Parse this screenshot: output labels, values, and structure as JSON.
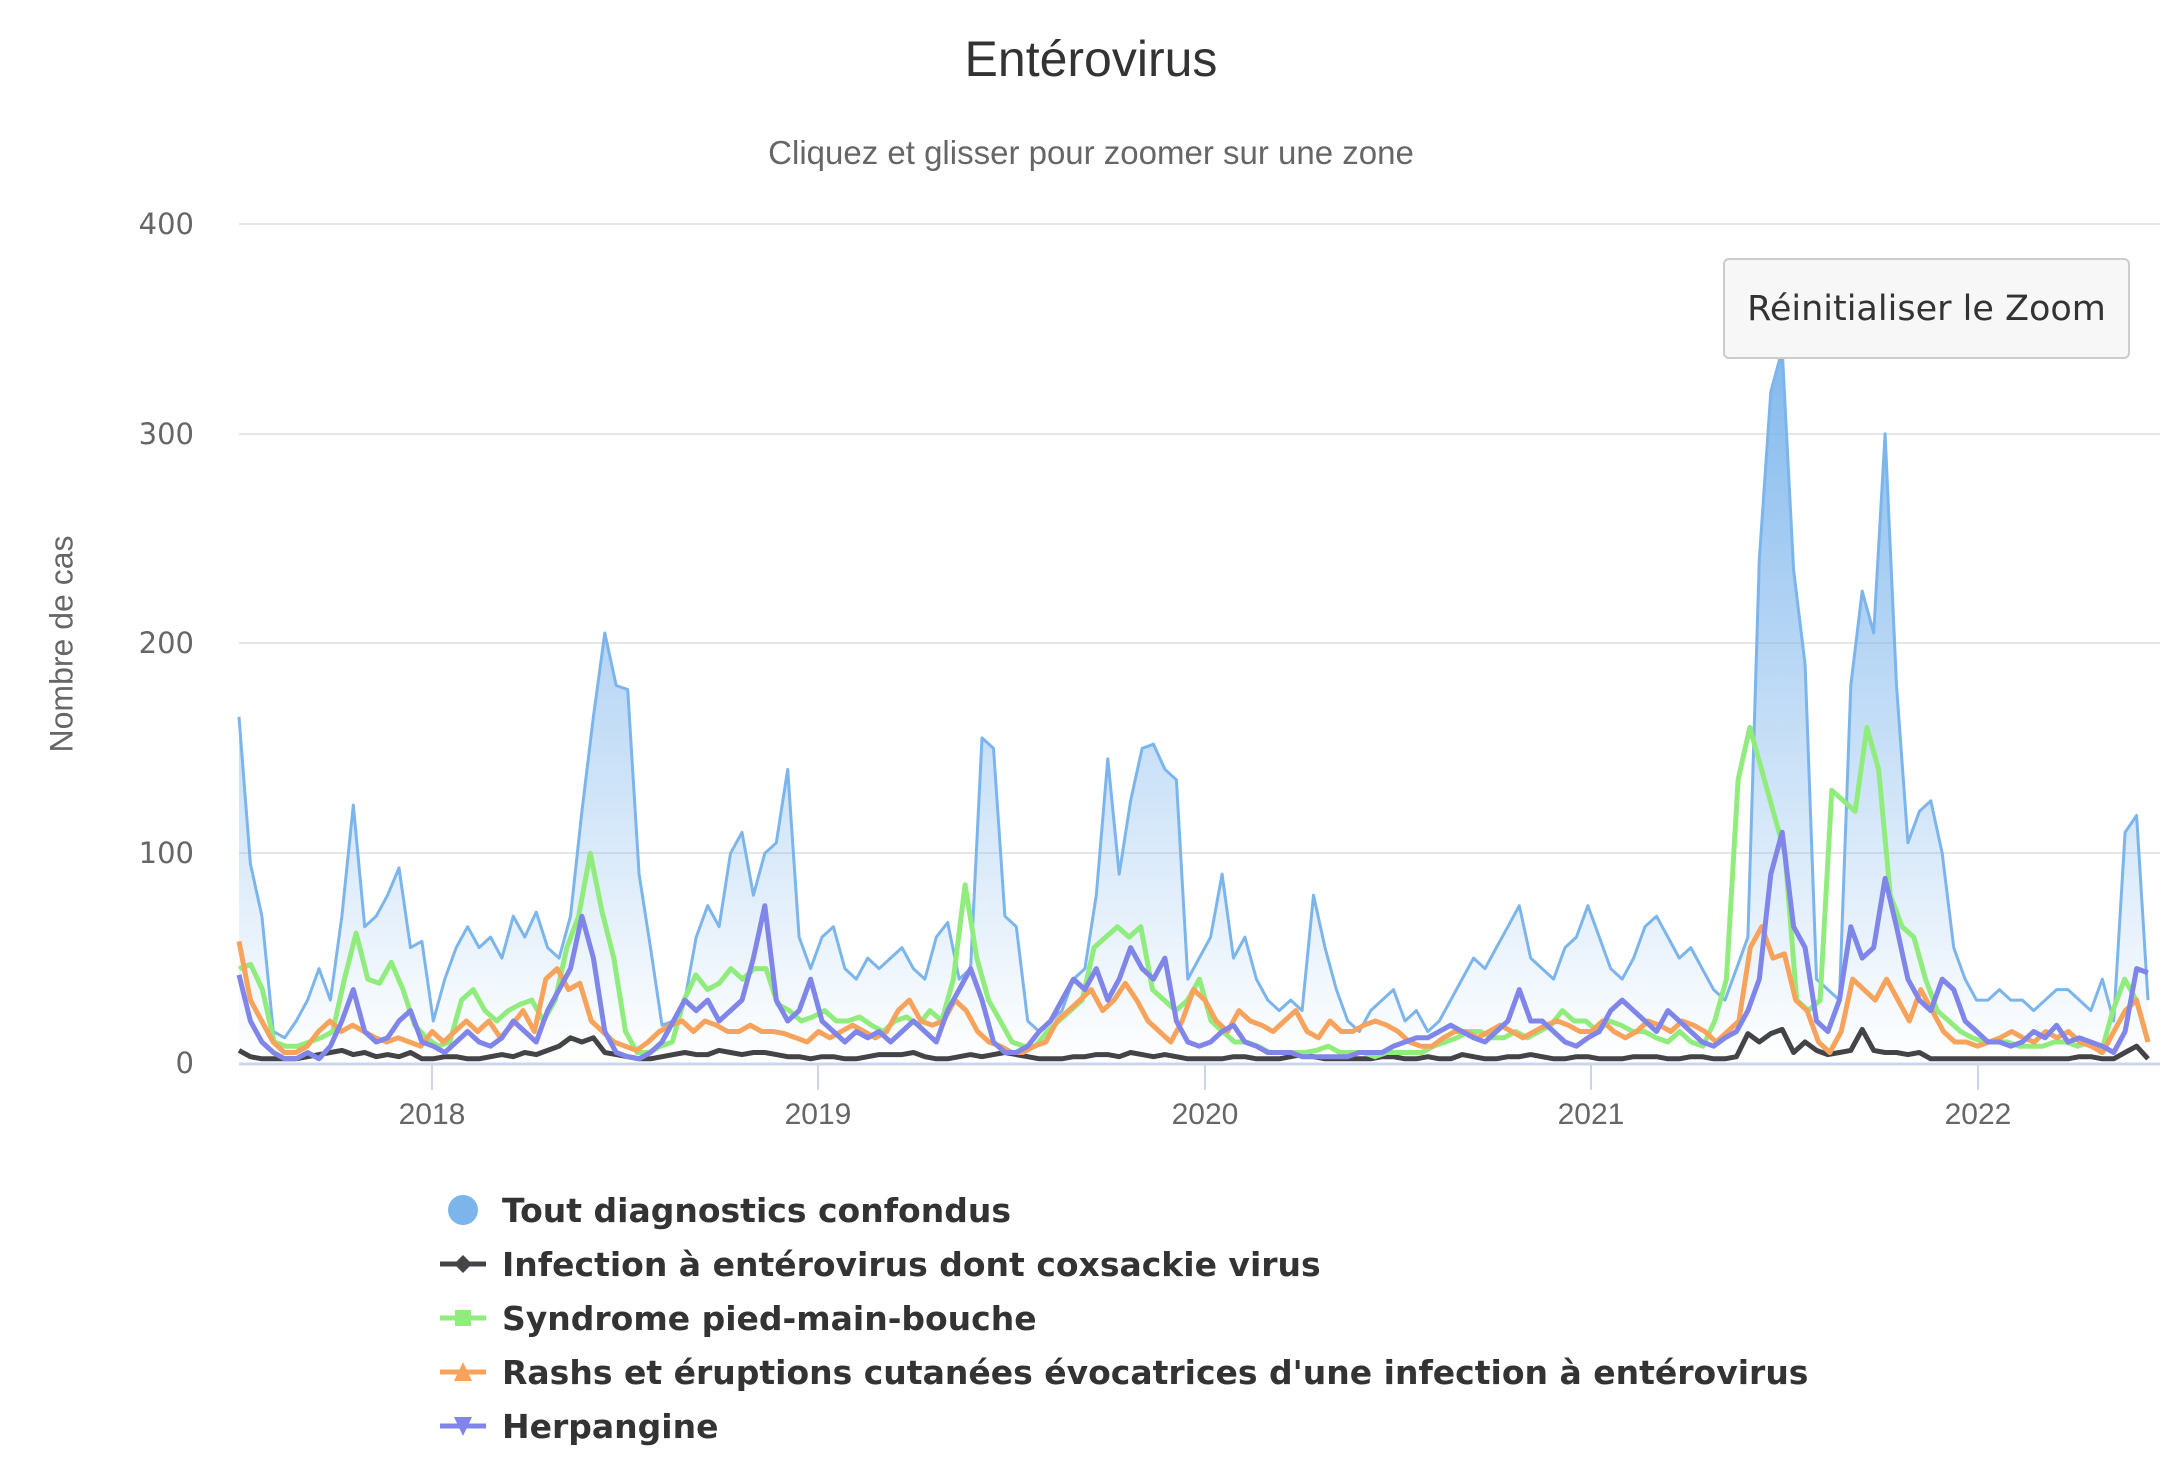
{
  "title": "Entérovirus",
  "subtitle": "Cliquez et glisser pour zoomer sur une zone",
  "reset_zoom_label": "Réinitialiser le Zoom",
  "y_axis": {
    "label": "Nombre de cas",
    "ticks": [
      "0",
      "100",
      "200",
      "300",
      "400"
    ]
  },
  "x_axis": {
    "ticks": [
      "2018",
      "2019",
      "2020",
      "2021",
      "2022"
    ]
  },
  "legend": [
    {
      "label": "Tout diagnostics confondus",
      "color": "#7cb5ec",
      "symbol": "circle"
    },
    {
      "label": "Infection à entérovirus dont coxsackie virus",
      "color": "#434348",
      "symbol": "diamond"
    },
    {
      "label": "Syndrome pied-main-bouche",
      "color": "#90ed7d",
      "symbol": "square"
    },
    {
      "label": "Rashs et éruptions cutanées évocatrices d'une infection à entérovirus",
      "color": "#f7a35c",
      "symbol": "triangle"
    },
    {
      "label": "Herpangine",
      "color": "#8085e9",
      "symbol": "triangle-down"
    }
  ],
  "chart_data": {
    "type": "line",
    "title": "Entérovirus",
    "subtitle": "Cliquez et glisser pour zoomer sur une zone",
    "xlabel": "",
    "ylabel": "Nombre de cas",
    "ylim": [
      0,
      400
    ],
    "xlim": [
      2017.5,
      2022.44
    ],
    "x_tick_labels": [
      "2018",
      "2019",
      "2020",
      "2021",
      "2022"
    ],
    "grid": true,
    "legend_position": "bottom",
    "x_start": 2017.5,
    "x_step_years": 0.0385,
    "series": [
      {
        "name": "Tout diagnostics confondus",
        "type": "area",
        "color": "#7cb5ec",
        "values": [
          165,
          95,
          70,
          15,
          12,
          20,
          30,
          45,
          30,
          70,
          123,
          65,
          70,
          80,
          93,
          55,
          58,
          20,
          40,
          55,
          65,
          55,
          60,
          50,
          70,
          60,
          72,
          55,
          50,
          70,
          120,
          165,
          205,
          180,
          178,
          90,
          55,
          18,
          20,
          30,
          60,
          75,
          65,
          100,
          110,
          80,
          100,
          105,
          140,
          60,
          45,
          60,
          65,
          45,
          40,
          50,
          45,
          50,
          55,
          45,
          40,
          60,
          67,
          40,
          45,
          155,
          150,
          70,
          65,
          20,
          15,
          20,
          25,
          40,
          45,
          80,
          145,
          90,
          125,
          150,
          152,
          140,
          135,
          40,
          50,
          60,
          90,
          50,
          60,
          40,
          30,
          25,
          30,
          25,
          80,
          55,
          35,
          20,
          15,
          25,
          30,
          35,
          20,
          25,
          15,
          20,
          30,
          40,
          50,
          45,
          55,
          65,
          75,
          50,
          45,
          40,
          55,
          60,
          75,
          60,
          45,
          40,
          50,
          65,
          70,
          60,
          50,
          55,
          45,
          35,
          30,
          45,
          60,
          240,
          320,
          340,
          235,
          190,
          40,
          35,
          30,
          180,
          225,
          205,
          300,
          180,
          105,
          120,
          125,
          100,
          55,
          40,
          30,
          30,
          35,
          30,
          30,
          25,
          30,
          35,
          35,
          30,
          25,
          40,
          20,
          110,
          118,
          30
        ]
      },
      {
        "name": "Infection à entérovirus dont coxsackie virus",
        "type": "line",
        "color": "#434348",
        "values": [
          6,
          3,
          2,
          2,
          2,
          2,
          3,
          4,
          5,
          6,
          4,
          5,
          3,
          4,
          3,
          5,
          2,
          2,
          3,
          3,
          2,
          2,
          3,
          4,
          3,
          5,
          4,
          6,
          8,
          12,
          10,
          12,
          5,
          4,
          3,
          2,
          2,
          3,
          4,
          5,
          4,
          4,
          6,
          5,
          4,
          5,
          5,
          4,
          3,
          3,
          2,
          3,
          3,
          2,
          2,
          3,
          4,
          4,
          4,
          5,
          3,
          2,
          2,
          3,
          4,
          3,
          4,
          5,
          4,
          3,
          2,
          2,
          2,
          3,
          3,
          4,
          4,
          3,
          5,
          4,
          3,
          4,
          3,
          2,
          2,
          2,
          2,
          3,
          3,
          2,
          2,
          2,
          3,
          4,
          3,
          2,
          2,
          2,
          2,
          2,
          3,
          3,
          2,
          2,
          3,
          2,
          2,
          4,
          3,
          2,
          2,
          3,
          3,
          4,
          3,
          2,
          2,
          3,
          3,
          2,
          2,
          2,
          3,
          3,
          3,
          2,
          2,
          3,
          3,
          2,
          2,
          3,
          14,
          10,
          14,
          16,
          5,
          10,
          6,
          4,
          5,
          6,
          16,
          6,
          5,
          5,
          4,
          5,
          2,
          2,
          2,
          2,
          2,
          2,
          2,
          2,
          2,
          2,
          2,
          2,
          2,
          3,
          3,
          2,
          2,
          5,
          8,
          2
        ]
      },
      {
        "name": "Syndrome pied-main-bouche",
        "type": "line",
        "color": "#90ed7d",
        "values": [
          45,
          47,
          35,
          10,
          8,
          8,
          10,
          12,
          15,
          40,
          62,
          40,
          38,
          48,
          35,
          18,
          12,
          8,
          10,
          30,
          35,
          25,
          20,
          25,
          28,
          30,
          20,
          30,
          55,
          70,
          100,
          72,
          50,
          15,
          5,
          5,
          8,
          10,
          30,
          42,
          35,
          38,
          45,
          40,
          45,
          45,
          28,
          25,
          20,
          22,
          25,
          20,
          20,
          22,
          18,
          15,
          20,
          22,
          18,
          25,
          20,
          40,
          85,
          50,
          30,
          20,
          10,
          8,
          8,
          15,
          20,
          25,
          30,
          55,
          60,
          65,
          60,
          65,
          35,
          30,
          25,
          30,
          40,
          20,
          15,
          10,
          10,
          8,
          5,
          5,
          5,
          5,
          6,
          8,
          5,
          5,
          5,
          3,
          5,
          5,
          5,
          5,
          8,
          10,
          12,
          15,
          15,
          12,
          12,
          15,
          12,
          15,
          18,
          25,
          20,
          20,
          15,
          20,
          18,
          15,
          15,
          12,
          10,
          15,
          10,
          8,
          20,
          40,
          135,
          160,
          140,
          120,
          100,
          30,
          25,
          30,
          130,
          125,
          120,
          160,
          140,
          80,
          65,
          60,
          40,
          25,
          20,
          15,
          12,
          10,
          10,
          10,
          8,
          8,
          8,
          10,
          10,
          8,
          10,
          5,
          25,
          40,
          30,
          10
        ]
      },
      {
        "name": "Rashs et éruptions cutanées évocatrices d'une infection à entérovirus",
        "type": "line",
        "color": "#f7a35c",
        "values": [
          58,
          30,
          20,
          10,
          5,
          5,
          8,
          15,
          20,
          15,
          18,
          15,
          12,
          10,
          12,
          10,
          8,
          15,
          10,
          15,
          20,
          15,
          20,
          12,
          18,
          25,
          15,
          40,
          45,
          35,
          38,
          20,
          15,
          10,
          8,
          6,
          10,
          15,
          18,
          20,
          15,
          20,
          18,
          15,
          15,
          18,
          15,
          15,
          14,
          12,
          10,
          15,
          12,
          15,
          18,
          15,
          12,
          15,
          25,
          30,
          20,
          18,
          20,
          30,
          25,
          15,
          10,
          8,
          5,
          5,
          8,
          10,
          20,
          25,
          30,
          35,
          25,
          30,
          38,
          30,
          20,
          15,
          10,
          20,
          35,
          30,
          20,
          15,
          25,
          20,
          18,
          15,
          20,
          25,
          15,
          12,
          20,
          15,
          15,
          18,
          20,
          18,
          15,
          10,
          8,
          8,
          12,
          15,
          15,
          12,
          15,
          18,
          15,
          12,
          15,
          18,
          20,
          18,
          15,
          15,
          20,
          15,
          12,
          15,
          20,
          18,
          15,
          20,
          18,
          15,
          10,
          15,
          20,
          55,
          65,
          50,
          52,
          30,
          25,
          10,
          5,
          15,
          40,
          35,
          30,
          40,
          30,
          20,
          35,
          25,
          15,
          10,
          10,
          8,
          10,
          12,
          15,
          12,
          10,
          15,
          12,
          15,
          10,
          8,
          5,
          15,
          25,
          30,
          10
        ]
      },
      {
        "name": "Herpangine",
        "type": "line",
        "color": "#8085e9",
        "values": [
          42,
          20,
          10,
          5,
          2,
          2,
          5,
          2,
          8,
          20,
          35,
          15,
          10,
          12,
          20,
          25,
          10,
          8,
          5,
          10,
          15,
          10,
          8,
          12,
          20,
          15,
          10,
          25,
          35,
          45,
          70,
          50,
          15,
          5,
          3,
          2,
          5,
          10,
          20,
          30,
          25,
          30,
          20,
          25,
          30,
          50,
          75,
          30,
          20,
          25,
          40,
          20,
          15,
          10,
          15,
          12,
          15,
          10,
          15,
          20,
          15,
          10,
          25,
          35,
          45,
          30,
          10,
          5,
          5,
          8,
          15,
          20,
          30,
          40,
          35,
          45,
          30,
          40,
          55,
          45,
          40,
          50,
          20,
          10,
          8,
          10,
          15,
          18,
          10,
          8,
          5,
          5,
          5,
          3,
          3,
          3,
          3,
          3,
          5,
          5,
          5,
          8,
          10,
          12,
          12,
          15,
          18,
          15,
          12,
          10,
          15,
          20,
          35,
          20,
          20,
          15,
          10,
          8,
          12,
          15,
          25,
          30,
          25,
          20,
          15,
          25,
          20,
          15,
          10,
          8,
          12,
          15,
          25,
          40,
          90,
          110,
          65,
          55,
          20,
          15,
          30,
          65,
          50,
          55,
          88,
          65,
          40,
          30,
          25,
          40,
          35,
          20,
          15,
          10,
          10,
          8,
          10,
          15,
          12,
          18,
          10,
          12,
          10,
          8,
          5,
          15,
          45,
          43
        ]
      }
    ]
  }
}
